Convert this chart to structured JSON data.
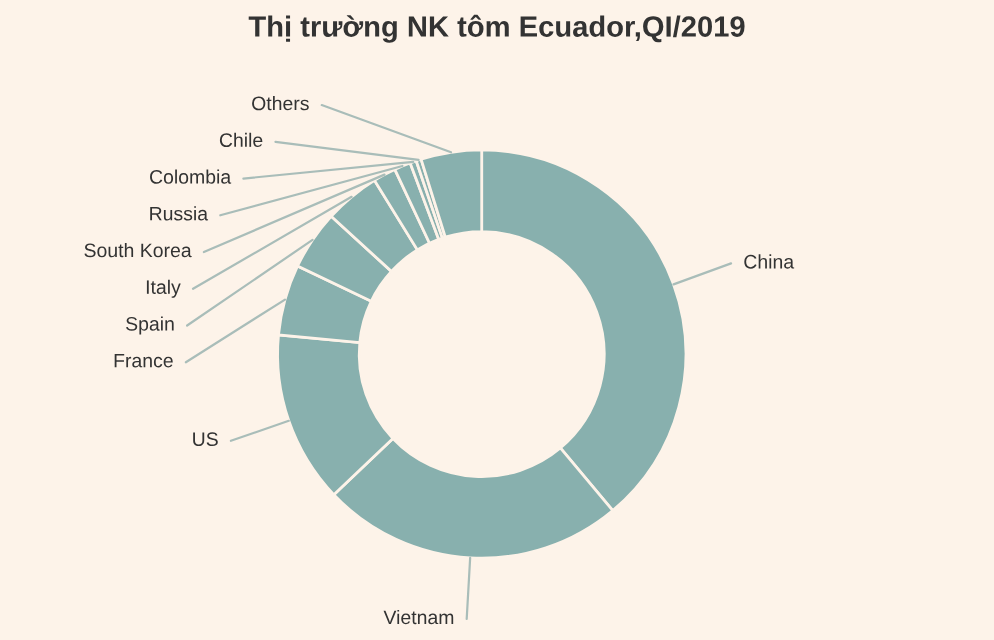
{
  "chart_data": {
    "type": "donut",
    "title": "Thị trường NK tôm Ecuador,QI/2019",
    "categories": [
      "China",
      "Vietnam",
      "US",
      "France",
      "Spain",
      "Italy",
      "South Korea",
      "Russia",
      "Colombia",
      "Chile",
      "Others"
    ],
    "values": [
      38.9,
      24.0,
      13.6,
      5.6,
      4.7,
      4.4,
      1.8,
      1.3,
      0.5,
      0.4,
      4.8
    ],
    "colors": [
      "#88b0ae",
      "#88b0ae",
      "#88b0ae",
      "#88b0ae",
      "#88b0ae",
      "#88b0ae",
      "#88b0ae",
      "#88b0ae",
      "#88b0ae",
      "#88b0ae",
      "#88b0ae"
    ],
    "legend": false
  }
}
